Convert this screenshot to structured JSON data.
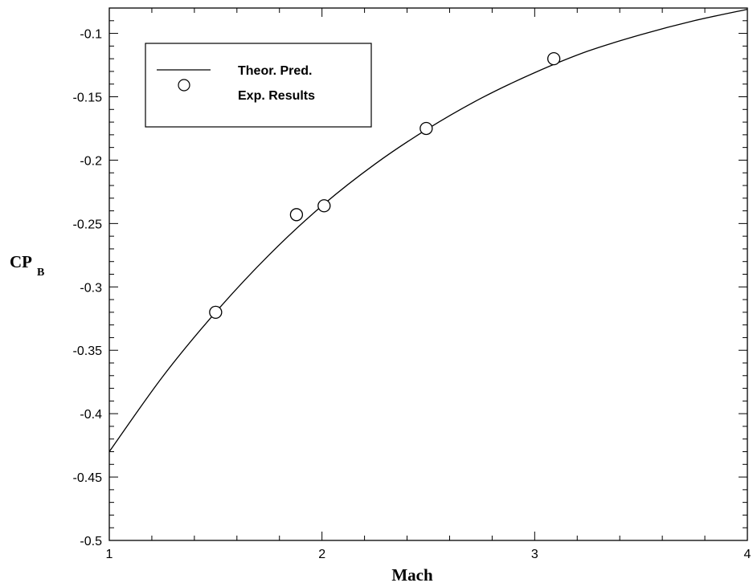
{
  "chart_data": {
    "type": "line",
    "xlabel": "Mach",
    "ylabel": "CP",
    "ylabel_subscript": "B",
    "xlim": [
      1,
      4
    ],
    "ylim": [
      -0.5,
      -0.08
    ],
    "x_ticks": [
      1,
      2,
      3,
      4
    ],
    "x_tick_labels": [
      "1",
      "2",
      "3",
      "4"
    ],
    "y_ticks": [
      -0.5,
      -0.45,
      -0.4,
      -0.35,
      -0.3,
      -0.25,
      -0.2,
      -0.15,
      -0.1
    ],
    "y_tick_labels": [
      "-0.5",
      "-0.45",
      "-0.4",
      "-0.35",
      "-0.3",
      "-0.25",
      "-0.2",
      "-0.15",
      "-0.1"
    ],
    "grid": false,
    "legend_position": "top-left",
    "series": [
      {
        "name": "Theor. Pred.",
        "style": "line",
        "color": "#000000",
        "x": [
          1.0,
          1.25,
          1.5,
          1.75,
          2.0,
          2.25,
          2.5,
          2.75,
          3.0,
          3.25,
          3.5,
          3.75,
          4.0
        ],
        "y": [
          -0.43,
          -0.371,
          -0.32,
          -0.275,
          -0.236,
          -0.203,
          -0.175,
          -0.151,
          -0.131,
          -0.114,
          -0.101,
          -0.09,
          -0.081
        ]
      },
      {
        "name": "Exp. Results",
        "style": "marker",
        "marker": "open-circle",
        "color": "#000000",
        "x": [
          1.5,
          1.88,
          2.01,
          2.49,
          3.09
        ],
        "y": [
          -0.32,
          -0.243,
          -0.236,
          -0.175,
          -0.12
        ]
      }
    ]
  }
}
